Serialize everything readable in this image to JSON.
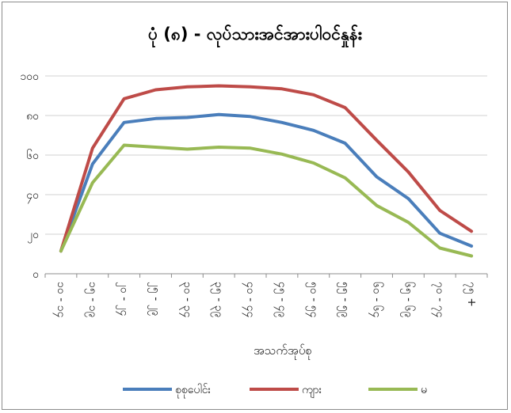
{
  "chart_data": {
    "type": "line",
    "title": "ပုံ (၈) - လုပ်သားအင်အားပါဝင်နှုန်း",
    "xlabel": "အသက်အုပ်စု",
    "ylabel": "",
    "ylim": [
      0,
      100
    ],
    "yticks": [
      "၀",
      "၂၀",
      "၄၀",
      "၆၀",
      "၈၀",
      "၁၀၀"
    ],
    "ytick_values": [
      0,
      20,
      40,
      60,
      80,
      100
    ],
    "categories": [
      "၁၀ - ၁၄",
      "၁၅ - ၁၉",
      "၂၀ - ၂၄",
      "၂၅ - ၂၉",
      "၃၀ - ၃၄",
      "၃၅ - ၃၉",
      "၄၀ - ၄၄",
      "၄၅ - ၄၉",
      "၅၀ - ၅၄",
      "၅၅ - ၅၉",
      "၆၀ - ၆၄",
      "၆၅ - ၆၉",
      "၇၀ - ၇၄",
      "၇၅ +"
    ],
    "grid": true,
    "legend_position": "bottom",
    "series": [
      {
        "name": "စုစုပေါင်း",
        "color": "#4a7ebb",
        "values": [
          11.5,
          55.5,
          76.5,
          78.5,
          79,
          80.5,
          79.5,
          76.5,
          72.5,
          66,
          49,
          38,
          20.5,
          14
        ]
      },
      {
        "name": "ကျား",
        "color": "#be4b48",
        "values": [
          11.5,
          63.5,
          88.5,
          93,
          94.5,
          95,
          94.5,
          93.5,
          90.5,
          84,
          67.5,
          51.5,
          32,
          21.5
        ]
      },
      {
        "name": "မ",
        "color": "#98b954",
        "values": [
          11.5,
          46,
          65,
          64,
          63,
          64,
          63.5,
          60.5,
          56,
          48.5,
          34.5,
          26,
          13,
          9
        ]
      }
    ]
  }
}
